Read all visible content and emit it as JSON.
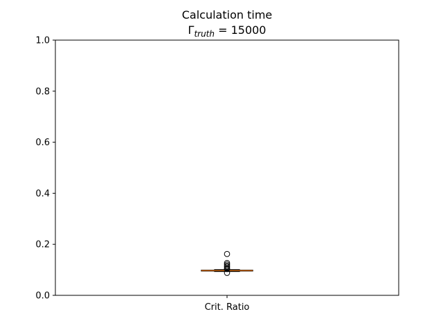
{
  "chart_data": {
    "type": "box",
    "title_line1": "Calculation time",
    "title_line2": {
      "symbol": "Γ",
      "subscript": "truth",
      "equals_value": " = 15000"
    },
    "xlabel": "",
    "ylabel": "",
    "ylim": [
      0,
      1
    ],
    "yticks": [
      0.0,
      0.2,
      0.4,
      0.6,
      0.8,
      1.0
    ],
    "ytick_labels": [
      "0.0",
      "0.2",
      "0.4",
      "0.6",
      "0.8",
      "1.0"
    ],
    "categories": [
      "Crit. Ratio"
    ],
    "grid": false,
    "boxes": [
      {
        "category": "Crit. Ratio",
        "whisker_low": 0.093,
        "q1": 0.095,
        "median": 0.097,
        "q3": 0.099,
        "whisker_high": 0.101,
        "outliers": [
          0.162,
          0.127,
          0.121,
          0.116,
          0.112,
          0.106,
          0.103,
          0.088
        ],
        "box_color": "#000000",
        "median_color": "#ff7f0e",
        "outlier_color": "#000000"
      }
    ]
  }
}
